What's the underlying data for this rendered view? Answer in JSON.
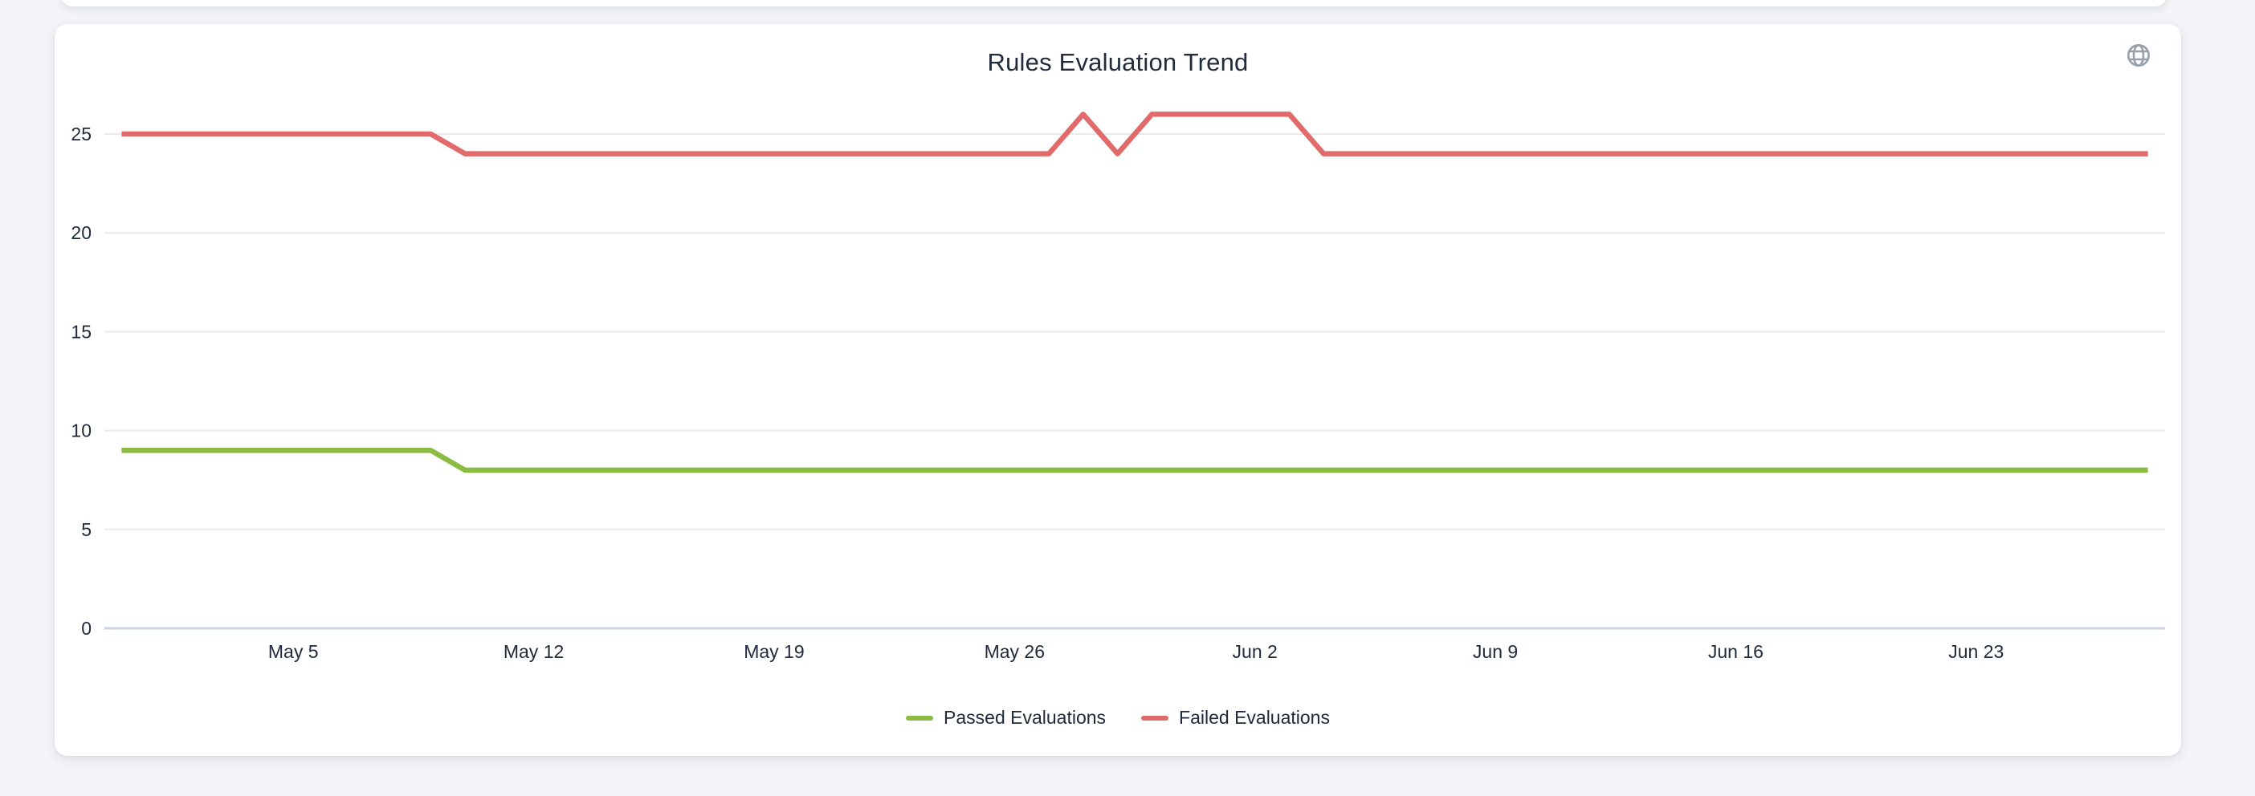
{
  "page": {
    "background": "#F3F4F7",
    "card_background": "#FFFFFF"
  },
  "card": {
    "globe_icon": "globe-icon",
    "globe_icon_color": "#98A0AA"
  },
  "chart_data": {
    "type": "line",
    "title": "Rules Evaluation Trend",
    "xlabel": "",
    "ylabel": "",
    "grid": true,
    "legend_position": "bottom",
    "ylim": [
      0,
      27
    ],
    "y_ticks": [
      0,
      5,
      10,
      15,
      20,
      25
    ],
    "x": [
      "Apr 30",
      "May 1",
      "May 2",
      "May 3",
      "May 4",
      "May 5",
      "May 6",
      "May 7",
      "May 8",
      "May 9",
      "May 10",
      "May 11",
      "May 12",
      "May 13",
      "May 14",
      "May 15",
      "May 16",
      "May 17",
      "May 18",
      "May 19",
      "May 20",
      "May 21",
      "May 22",
      "May 23",
      "May 24",
      "May 25",
      "May 26",
      "May 27",
      "May 28",
      "May 29",
      "May 30",
      "May 31",
      "Jun 1",
      "Jun 2",
      "Jun 3",
      "Jun 4",
      "Jun 5",
      "Jun 6",
      "Jun 7",
      "Jun 8",
      "Jun 9",
      "Jun 10",
      "Jun 11",
      "Jun 12",
      "Jun 13",
      "Jun 14",
      "Jun 15",
      "Jun 16",
      "Jun 17",
      "Jun 18",
      "Jun 19",
      "Jun 20",
      "Jun 21",
      "Jun 22",
      "Jun 23",
      "Jun 24",
      "Jun 25",
      "Jun 26",
      "Jun 27",
      "Jun 28"
    ],
    "x_tick_labels": [
      "May 5",
      "May 12",
      "May 19",
      "May 26",
      "Jun 2",
      "Jun 9",
      "Jun 16",
      "Jun 23"
    ],
    "x_tick_indices": [
      5,
      12,
      19,
      26,
      33,
      40,
      47,
      54
    ],
    "series": [
      {
        "name": "Passed Evaluations",
        "color": "#8ABB42",
        "values": [
          9,
          9,
          9,
          9,
          9,
          9,
          9,
          9,
          9,
          9,
          8,
          8,
          8,
          8,
          8,
          8,
          8,
          8,
          8,
          8,
          8,
          8,
          8,
          8,
          8,
          8,
          8,
          8,
          8,
          8,
          8,
          8,
          8,
          8,
          8,
          8,
          8,
          8,
          8,
          8,
          8,
          8,
          8,
          8,
          8,
          8,
          8,
          8,
          8,
          8,
          8,
          8,
          8,
          8,
          8,
          8,
          8,
          8,
          8,
          8
        ]
      },
      {
        "name": "Failed Evaluations",
        "color": "#E16B6B",
        "values": [
          25,
          25,
          25,
          25,
          25,
          25,
          25,
          25,
          25,
          25,
          24,
          24,
          24,
          24,
          24,
          24,
          24,
          24,
          24,
          24,
          24,
          24,
          24,
          24,
          24,
          24,
          24,
          24,
          26,
          24,
          26,
          26,
          26,
          26,
          26,
          24,
          24,
          24,
          24,
          24,
          24,
          24,
          24,
          24,
          24,
          24,
          24,
          24,
          24,
          24,
          24,
          24,
          24,
          24,
          24,
          24,
          24,
          24,
          24,
          24
        ]
      }
    ],
    "colors": {
      "grid_line": "#EAEAEA",
      "zero_axis_line": "#CBD3E2",
      "text": "#212B3B"
    }
  }
}
